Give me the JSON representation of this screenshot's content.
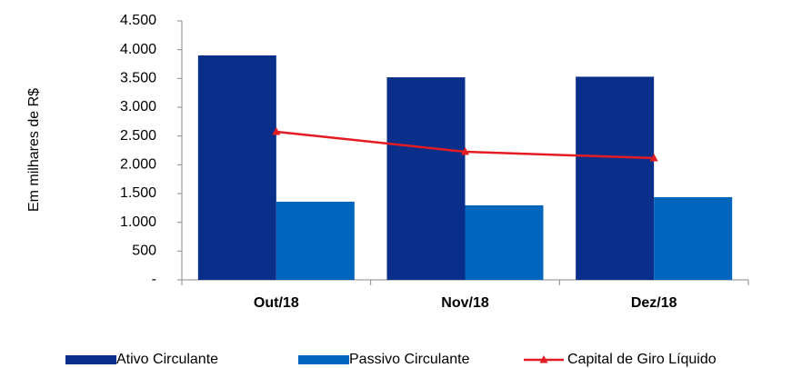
{
  "chart_data": {
    "type": "bar",
    "y_label": "Em milhares de R$",
    "categories": [
      "Out/18",
      "Nov/18",
      "Dez/18"
    ],
    "series": [
      {
        "name": "Ativo Circulante",
        "color": "#0a2f8a",
        "type": "bar",
        "values": [
          3900,
          3520,
          3530
        ]
      },
      {
        "name": "Passivo Circulante",
        "color": "#0065bd",
        "type": "bar",
        "values": [
          1358,
          1295,
          1437
        ]
      },
      {
        "name": "Capital de Giro Líquido",
        "color": "#e31b23",
        "type": "line",
        "values": [
          2574,
          2226,
          2116
        ]
      }
    ],
    "ylim": [
      0,
      4500
    ],
    "yticks": [
      {
        "value": 0,
        "label": "-"
      },
      500,
      {
        "value": 1000,
        "label": "1.000"
      },
      {
        "value": 1500,
        "label": "1.500"
      },
      {
        "value": 2000,
        "label": "2.000"
      },
      {
        "value": 2500,
        "label": "2.500"
      },
      {
        "value": 3000,
        "label": "3.000"
      },
      {
        "value": 3500,
        "label": "3.500"
      },
      {
        "value": 4000,
        "label": "4.000"
      },
      {
        "value": 4500,
        "label": "4.500"
      }
    ],
    "legend": "bottom"
  }
}
